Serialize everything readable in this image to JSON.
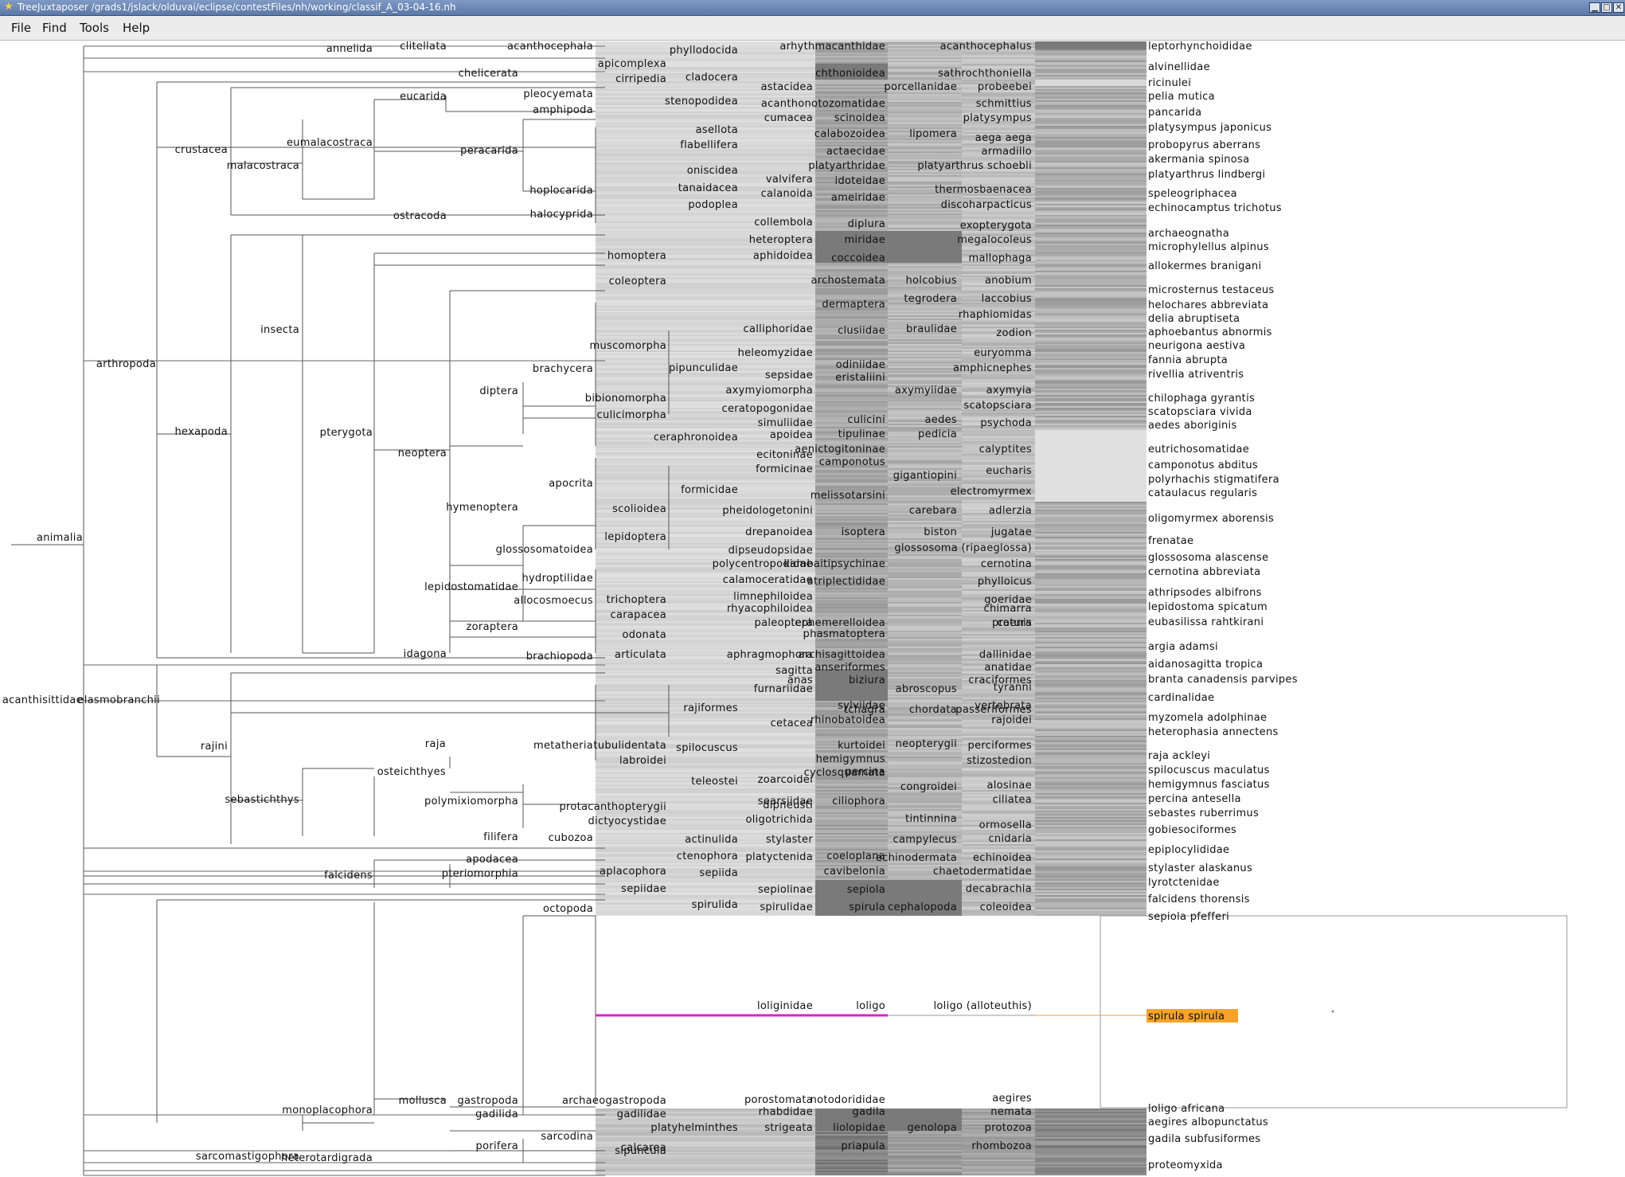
{
  "window": {
    "title": "TreeJuxtaposer /grads1/jslack/olduvai/eclipse/contestFiles/nh/working/classif_A_03-04-16.nh",
    "app_icon": "star-icon",
    "buttons": [
      "minimize-icon",
      "maximize-icon",
      "close-icon"
    ]
  },
  "menu": {
    "items": [
      "File",
      "Find",
      "Tools",
      "Help"
    ]
  },
  "colors": {
    "highlight_path": "#e020c8",
    "highlight_leaf_bg": "#f5a32a",
    "highlight_leaf_line": "#e8a040",
    "line": "#555555",
    "compressed_dark": "#707070"
  },
  "tree": {
    "root": "animalia",
    "internal_labels": [
      "annelida",
      "clitellata",
      "acanthocephala",
      "phyllodocida",
      "arhythmacanthidae",
      "acanthocephalus",
      "apicomplexa",
      "chelicerata",
      "cirripedia",
      "cladocera",
      "chthonioidea",
      "sathrochthoniella",
      "astacidea",
      "porcellanidae",
      "probeebei",
      "pleocyemata",
      "eucarida",
      "stenopodidea",
      "amphipoda",
      "acanthonotozomatidae",
      "schmittius",
      "cumacea",
      "scinoidea",
      "platysympus",
      "asellota",
      "calabozoidea",
      "lipomera",
      "aega aega",
      "crustacea",
      "eumalacostraca",
      "peracarida",
      "flabellifera",
      "actaecidae",
      "armadillo",
      "malacostraca",
      "oniscidea",
      "platyarthridae",
      "platyarthrus schoebli",
      "valvifera",
      "idoteidae",
      "hoplocarida",
      "tanaidacea",
      "calanoida",
      "ameiridae",
      "thermosbaenacea",
      "podoplea",
      "discoharpacticus",
      "ostracoda",
      "halocyprida",
      "collembola",
      "diplura",
      "exopterygota",
      "heteroptera",
      "miridae",
      "megalocoleus",
      "homoptera",
      "aphidoidea",
      "coccoidea",
      "mallophaga",
      "coleoptera",
      "archostemata",
      "holcobius",
      "anobium",
      "tegrodera",
      "laccobius",
      "dermaptera",
      "rhaphiomidas",
      "insecta",
      "calliphoridae",
      "clusiidae",
      "braulidae",
      "zodion",
      "muscomorpha",
      "heleomyzidae",
      "euryomma",
      "brachycera",
      "pipunculidae",
      "odiniidae",
      "amphicnephes",
      "sepsidae",
      "eristaliini",
      "arthropoda",
      "diptera",
      "axymyiomorpha",
      "axymyiidae",
      "axymyia",
      "bibionomorpha",
      "scatopsciara",
      "ceratopogonidae",
      "culicimorpha",
      "simuliidae",
      "culicini",
      "aedes",
      "psychoda",
      "hexapoda",
      "pterygota",
      "tipulinae",
      "pedicia",
      "apoidea",
      "ceraphronoidea",
      "aenictogitoninae",
      "calyptites",
      "neoptera",
      "ecitoninae",
      "camponotus",
      "formicinae",
      "gigantiopini",
      "eucharis",
      "apocrita",
      "formicidae",
      "electromyrmex",
      "hymenoptera",
      "melissotarsini",
      "scolioidea",
      "pheidologetonini",
      "carebara",
      "adlerzia",
      "drepanoidea",
      "isoptera",
      "biston",
      "jugatae",
      "animalia",
      "lepidoptera",
      "glossosomatoidea",
      "glossosoma (ripaeglossa)",
      "dipseudopsidae",
      "polycentropodidae",
      "kambaitipsychinae",
      "cernotina",
      "hydroptilidae",
      "calamoceratidae",
      "atriplectididae",
      "phylloicus",
      "trichoptera",
      "limnephiloidea",
      "goeridae",
      "lepidostomatidae",
      "allocosmoecus",
      "rhyacophiloidea",
      "chimarra",
      "carapacea",
      "paleoptera",
      "ephemerelloidea",
      "caenis",
      "zoraptera",
      "odonata",
      "phasmatoptera",
      "protura",
      "idagona",
      "brachiopoda",
      "articulata",
      "aphragmophora",
      "archisagittoidea",
      "dallinidae",
      "sagitta",
      "anseriformes",
      "anatidae",
      "anas",
      "biziura",
      "craciformes",
      "acanthisittidae",
      "tchagra",
      "chordata",
      "passeriformes",
      "furnariidae",
      "abroscopus",
      "tyranni",
      "sylviidae",
      "vertebrata",
      "elasmobranchii",
      "rajiformes",
      "rajoidei",
      "cetacea",
      "rhinobatoidea",
      "rajini",
      "raja",
      "metatheria",
      "tubulidentata",
      "spilocuscus",
      "kurtoidei",
      "neopterygii",
      "perciformes",
      "labroidei",
      "hemigymnus",
      "stizostedion",
      "percina",
      "osteichthyes",
      "teleostei",
      "zoarcoidei",
      "cyclosquamata",
      "congroidei",
      "alosinae",
      "sebastichthys",
      "polymixiomorpha",
      "searsiidae",
      "protacanthopterygii",
      "dipneusti",
      "ciliophora",
      "ciliatea",
      "oligotrichida",
      "tintinnina",
      "dictyocystidae",
      "ormosella",
      "filifera",
      "cubozoa",
      "actinulida",
      "stylaster",
      "campylecus",
      "cnidaria",
      "ctenophora",
      "platyctenida",
      "coeloplana",
      "echinodermata",
      "echinoidea",
      "apodacea",
      "aplacophora",
      "cavibelonia",
      "chaetodermatidae",
      "falcidens",
      "pteriomorphia",
      "sepiida",
      "sepiidae",
      "sepiolinae",
      "sepiola",
      "decabrachia",
      "spirulida",
      "spirulidae",
      "spirula",
      "cephalopoda",
      "coleoidea",
      "octopoda",
      "loliginidae",
      "loligo",
      "loligo (alloteuthis)",
      "mollusca",
      "gastropoda",
      "archaeogastropoda",
      "porostomata",
      "notodorididae",
      "aegires",
      "monoplacophora",
      "gadilida",
      "gadilidae",
      "rhabdidae",
      "gadila",
      "nemata",
      "platyhelminthes",
      "strigeata",
      "liolopidae",
      "genolopa",
      "protozoa",
      "sarcodina",
      "porifera",
      "calcarea",
      "priapula",
      "rhombozoa",
      "sarcomastigophora",
      "heterotardigrada",
      "sipuncula"
    ],
    "leaf_labels": [
      "leptorhynchoididae",
      "alvinellidae",
      "ricinulei",
      "pelia mutica",
      "pancarida",
      "platysympus japonicus",
      "probopyrus aberrans",
      "akermania spinosa",
      "platyarthrus lindbergi",
      "speleogriphacea",
      "echinocamptus trichotus",
      "archaeognatha",
      "microphylellus alpinus",
      "allokermes branigani",
      "microsternus testaceus",
      "helochares abbreviata",
      "delia abruptiseta",
      "aphoebantus abnormis",
      "neurigona aestiva",
      "fannia abrupta",
      "rivellia atriventris",
      "chilophaga gyrantis",
      "scatopsciara vivida",
      "aedes aboriginis",
      "eutrichosomatidae",
      "camponotus abditus",
      "polyrhachis stigmatifera",
      "cataulacus regularis",
      "oligomyrmex aborensis",
      "frenatae",
      "glossosoma alascense",
      "cernotina abbreviata",
      "athripsodes albifrons",
      "lepidostoma spicatum",
      "eubasilissa rahtkirani",
      "argia adamsi",
      "aidanosagitta tropica",
      "branta canadensis parvipes",
      "cardinalidae",
      "myzomela adolphinae",
      "heterophasia annectens",
      "raja ackleyi",
      "spilocuscus maculatus",
      "hemigymnus fasciatus",
      "percina antesella",
      "sebastes ruberrimus",
      "gobiesociformes",
      "epiplocylididae",
      "stylaster alaskanus",
      "lyrotctenidae",
      "falcidens thorensis",
      "sepiola pfefferi",
      "spirula spirula",
      "loligo africana",
      "aegires albopunctatus",
      "gadila subfusiformes",
      "proteomyxida"
    ],
    "highlighted_leaf": "spirula spirula"
  }
}
